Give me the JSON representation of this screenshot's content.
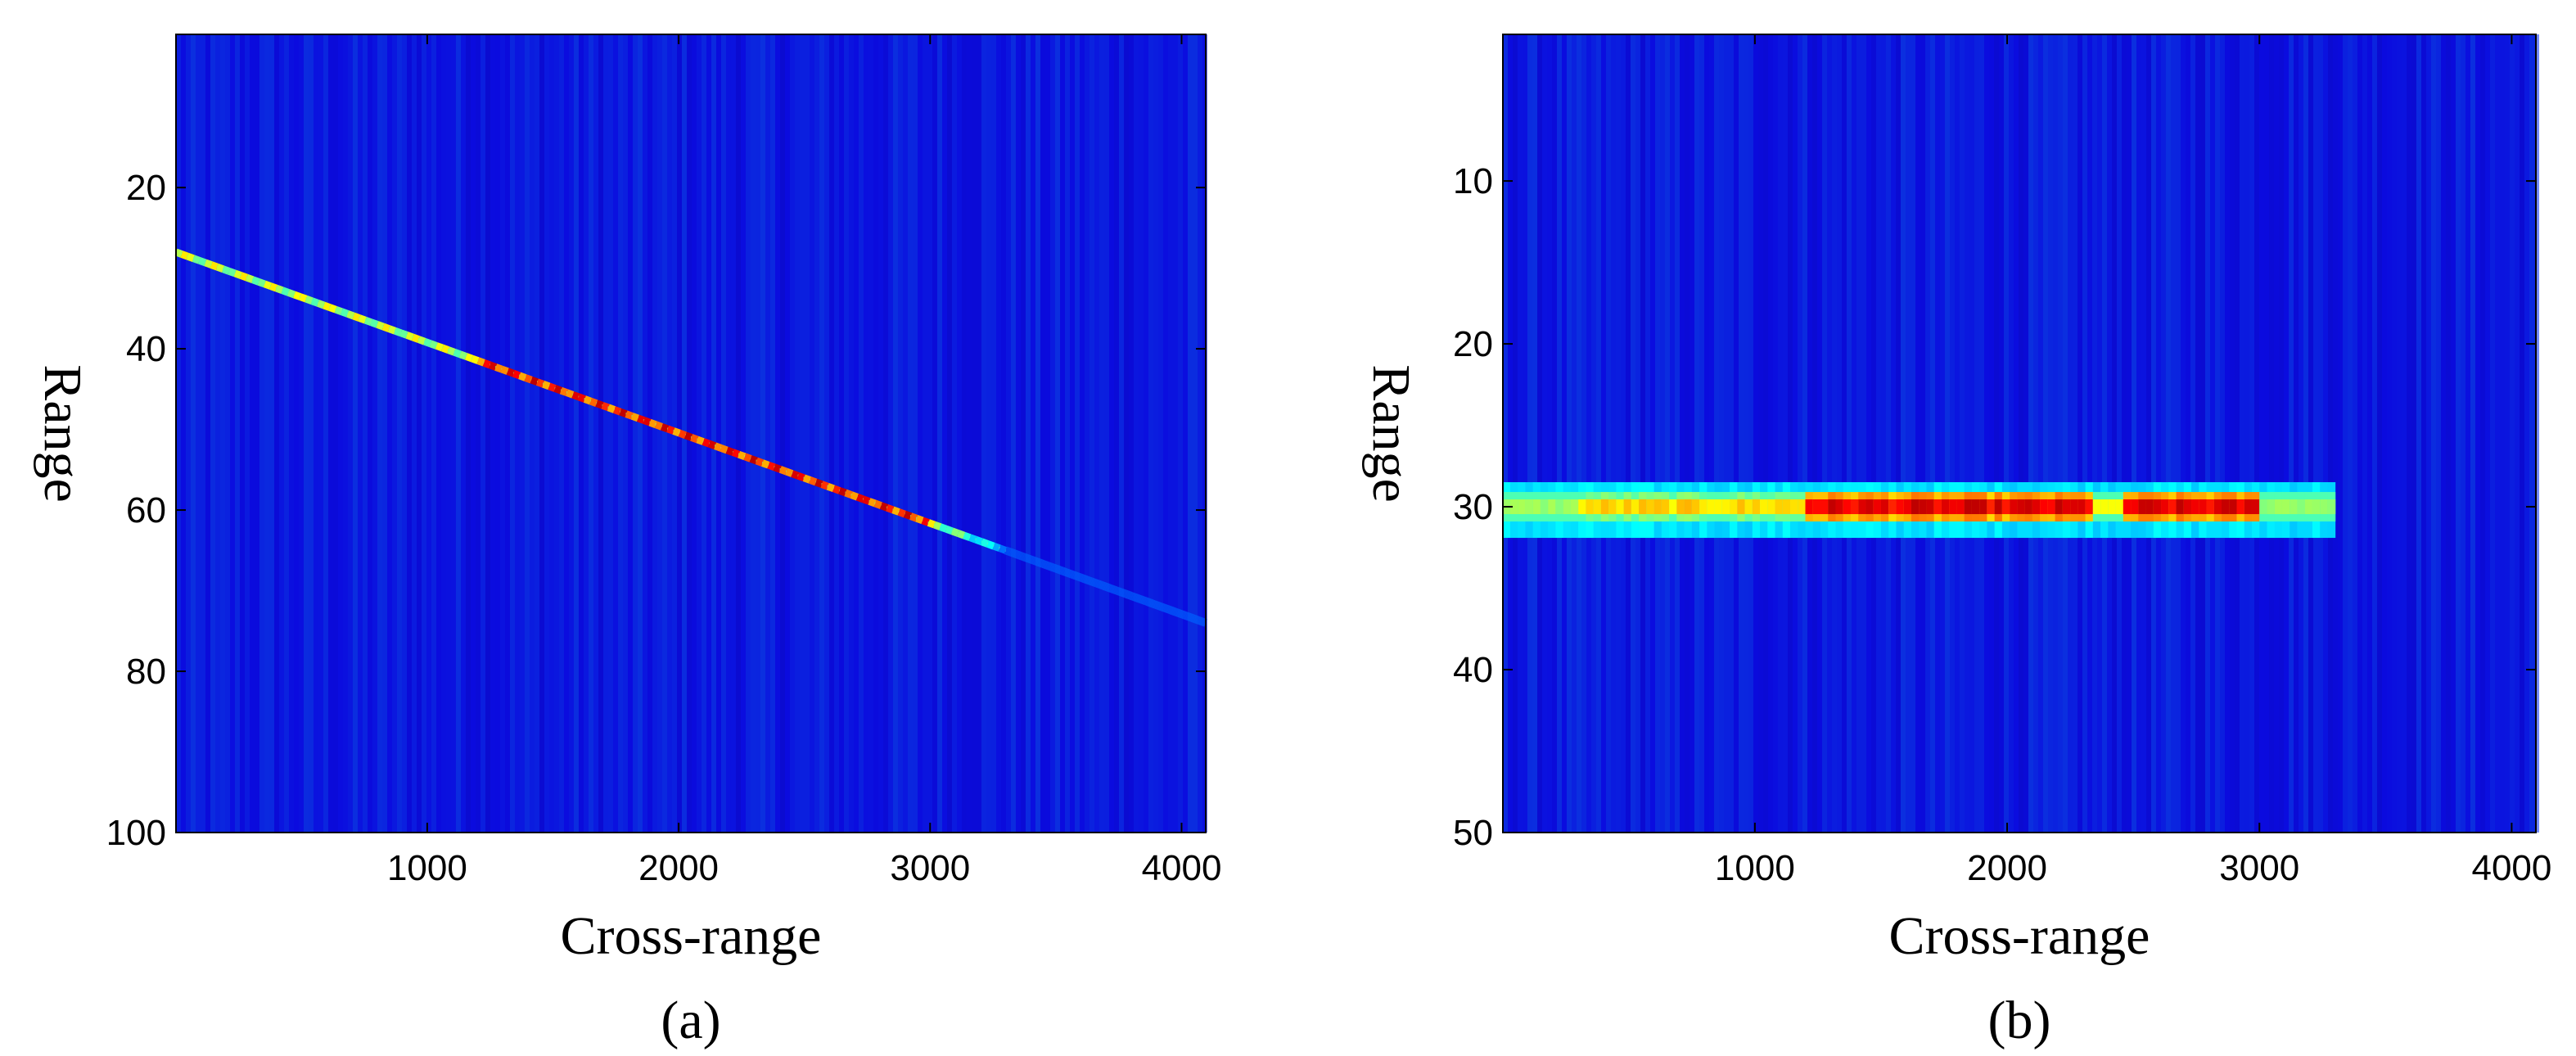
{
  "chart_data": [
    {
      "type": "heatmap",
      "caption": "(a)",
      "xlabel": "Cross-range",
      "ylabel": "Range",
      "xlim": [
        1,
        4096
      ],
      "ylim": [
        100,
        1
      ],
      "y_inverted": true,
      "xticks": [
        1000,
        2000,
        3000,
        4000
      ],
      "yticks": [
        20,
        40,
        60,
        80,
        100
      ],
      "colormap": "jet",
      "background_color": "#1a1ab8",
      "grid": false,
      "features": [
        {
          "kind": "line",
          "x_start": 0,
          "x_end": 3300,
          "range_start": 28,
          "range_end": 65,
          "peak_x": [
            1200,
            3000
          ]
        },
        {
          "kind": "faint-line",
          "x_start": 3300,
          "x_end": 4096,
          "range_start": 65,
          "range_end": 74
        }
      ]
    },
    {
      "type": "heatmap",
      "caption": "(b)",
      "xlabel": "Cross-range",
      "ylabel": "Range",
      "xlim": [
        1,
        4096
      ],
      "ylim": [
        50,
        1
      ],
      "y_inverted": true,
      "xticks": [
        1000,
        2000,
        3000,
        4000
      ],
      "yticks": [
        10,
        20,
        30,
        40,
        50
      ],
      "colormap": "jet",
      "background_color": "#1a1ab8",
      "grid": false,
      "features": [
        {
          "kind": "horizontal-band",
          "x_start": 0,
          "x_end": 3300,
          "range": 30,
          "peak_x": [
            1200,
            3000
          ],
          "gap_x": 2400
        }
      ]
    }
  ]
}
